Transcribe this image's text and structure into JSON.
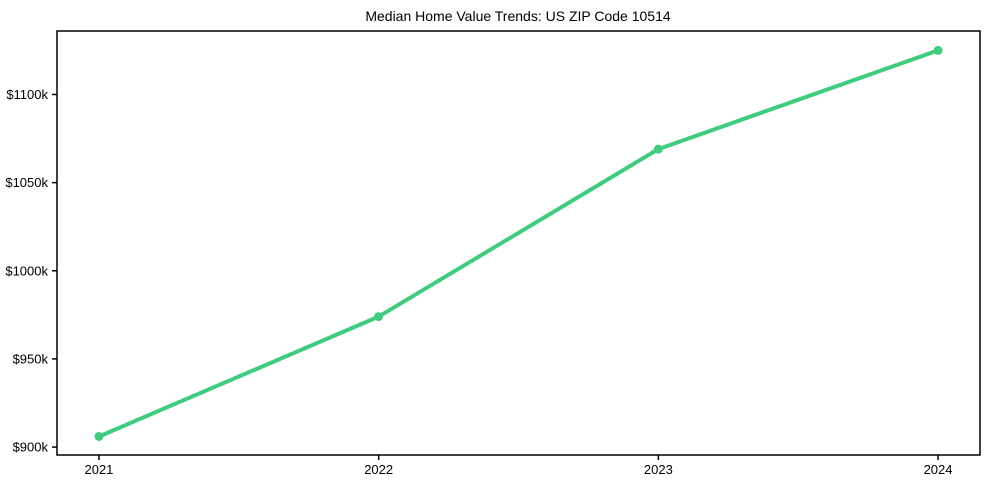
{
  "chart_data": {
    "type": "line",
    "title": "Median Home Value Trends: US ZIP Code 10514",
    "x": [
      2021,
      2022,
      2023,
      2024
    ],
    "x_tick_labels": [
      "2021",
      "2022",
      "2023",
      "2024"
    ],
    "values": [
      906,
      974,
      1069,
      1125
    ],
    "value_unit": "$k",
    "y_ticks": [
      900,
      950,
      1000,
      1050,
      1100
    ],
    "y_tick_labels": [
      "$900k",
      "$950k",
      "$1000k",
      "$1050k",
      "$1100k"
    ],
    "xlim": [
      2020.85,
      2024.15
    ],
    "ylim": [
      895.5,
      1136
    ],
    "xlabel": "",
    "ylabel": "",
    "grid": false,
    "legend": "none",
    "style": {
      "line_color": "#3ecc7e",
      "line_width": 4,
      "marker": "circle",
      "marker_radius": 4.5,
      "axis_color": "#000000",
      "text_color": "#000000",
      "background_color": "#ffffff"
    }
  }
}
